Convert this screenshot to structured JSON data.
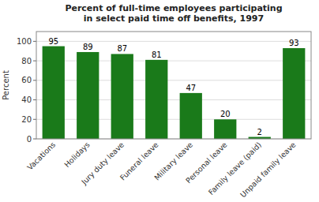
{
  "chart_data": {
    "type": "bar",
    "title": "Percent of full-time employees participating\nin select paid time off benefits, 1997",
    "categories": [
      "Vacations",
      "Holidays",
      "Jury duty leave",
      "Funeral leave",
      "Military leave",
      "Personal leave",
      "Family leave (paid)",
      "Unpaid family leave"
    ],
    "values": [
      95,
      89,
      87,
      81,
      47,
      20,
      2,
      93
    ],
    "color": "#1a7a1a",
    "ylabel": "Percent",
    "ylim": [
      0,
      110
    ],
    "yticks": [
      0,
      20,
      40,
      60,
      80,
      100
    ],
    "grid": true,
    "data_labels": true
  }
}
